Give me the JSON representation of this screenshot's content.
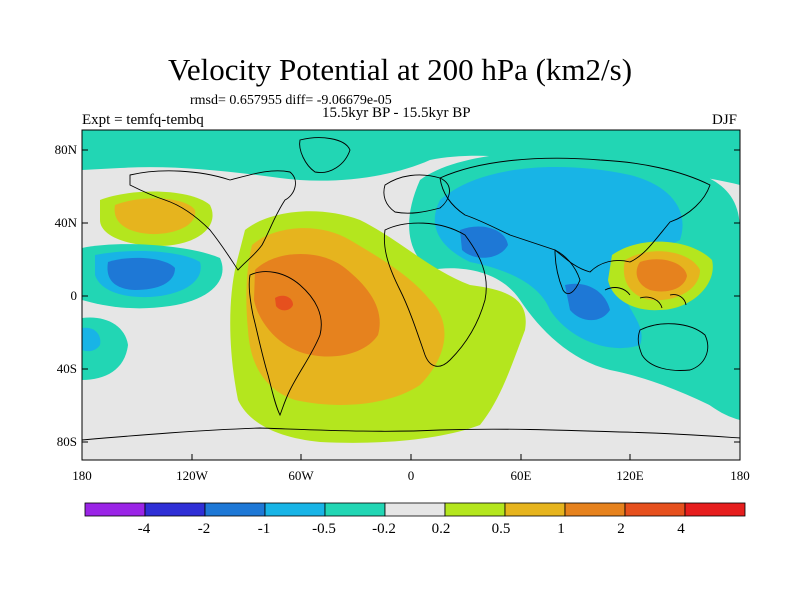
{
  "title": "Velocity Potential at 200 hPa (km2/s)",
  "stats_line": "rmsd= 0.657955 diff= -9.06679e-05",
  "period": "15.5kyr BP - 15.5kyr BP",
  "experiment": "Expt = temfq-tembq",
  "season": "DJF",
  "axes": {
    "lat_labels": [
      "80N",
      "40N",
      "0",
      "40S",
      "80S"
    ],
    "lon_labels": [
      "180",
      "120W",
      "60W",
      "0",
      "60E",
      "120E",
      "180"
    ]
  },
  "colorbar": {
    "labels": [
      "-4",
      "-2",
      "-1",
      "-0.5",
      "-0.2",
      "0.2",
      "0.5",
      "1",
      "2",
      "4"
    ],
    "colors": [
      "#9a24e6",
      "#2f2fd6",
      "#1e78d6",
      "#18b4e6",
      "#22d6b4",
      "#e6e6e6",
      "#b4e61e",
      "#e6b41e",
      "#e6821e",
      "#e6501e",
      "#e61e1e"
    ]
  },
  "colors": {
    "land_outline": "#000000",
    "background": "#e6e6e6"
  }
}
